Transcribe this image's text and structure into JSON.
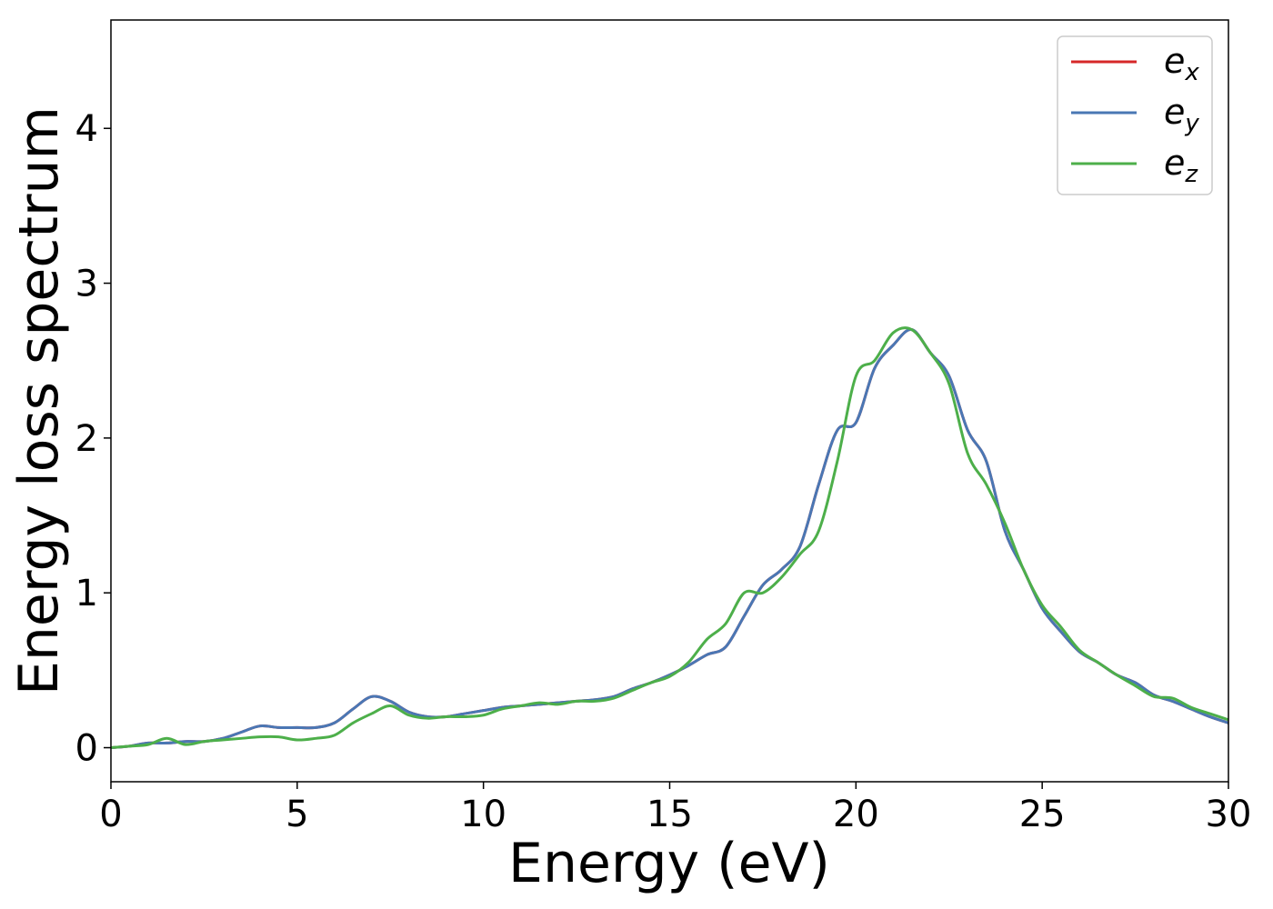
{
  "chart_data": {
    "type": "line",
    "title": "",
    "xlabel": "Energy (eV)",
    "ylabel": "Energy loss spectrum",
    "xlim": [
      0,
      30
    ],
    "ylim": [
      -0.22,
      4.7
    ],
    "xticks": [
      "0",
      "5",
      "10",
      "15",
      "20",
      "25",
      "30"
    ],
    "yticks": [
      "0",
      "1",
      "2",
      "3",
      "4"
    ],
    "grid": false,
    "legend_position": "top-right",
    "series": [
      {
        "name": "e_x",
        "label_main": "e",
        "label_sub": "x",
        "color": "#d62728",
        "x": [
          0,
          0.5,
          1,
          1.5,
          2,
          2.5,
          3,
          3.5,
          4,
          4.5,
          5,
          5.5,
          6,
          6.5,
          7,
          7.5,
          8,
          8.5,
          9,
          9.5,
          10,
          10.5,
          11,
          11.5,
          12,
          12.5,
          13,
          13.5,
          14,
          14.5,
          15,
          15.5,
          16,
          16.5,
          17,
          17.5,
          18,
          18.5,
          19,
          19.5,
          20,
          20.5,
          21,
          21.5,
          22,
          22.5,
          23,
          23.5,
          24,
          24.5,
          25,
          25.5,
          26,
          26.5,
          27,
          27.5,
          28,
          28.5,
          29,
          29.5,
          30
        ],
        "y": [
          0,
          0.01,
          0.03,
          0.03,
          0.04,
          0.04,
          0.06,
          0.1,
          0.14,
          0.13,
          0.13,
          0.13,
          0.16,
          0.25,
          0.33,
          0.3,
          0.23,
          0.2,
          0.2,
          0.22,
          0.24,
          0.26,
          0.27,
          0.28,
          0.29,
          0.3,
          0.31,
          0.33,
          0.38,
          0.42,
          0.47,
          0.53,
          0.6,
          0.65,
          0.85,
          1.05,
          1.15,
          1.3,
          1.7,
          2.05,
          2.1,
          2.45,
          2.6,
          2.7,
          2.55,
          2.4,
          2.05,
          1.85,
          1.4,
          1.15,
          0.9,
          0.75,
          0.62,
          0.55,
          0.47,
          0.42,
          0.34,
          0.3,
          0.25,
          0.2,
          0.16
        ]
      },
      {
        "name": "e_y",
        "label_main": "e",
        "label_sub": "y",
        "color": "#4a77b4",
        "x": [
          0,
          0.5,
          1,
          1.5,
          2,
          2.5,
          3,
          3.5,
          4,
          4.5,
          5,
          5.5,
          6,
          6.5,
          7,
          7.5,
          8,
          8.5,
          9,
          9.5,
          10,
          10.5,
          11,
          11.5,
          12,
          12.5,
          13,
          13.5,
          14,
          14.5,
          15,
          15.5,
          16,
          16.5,
          17,
          17.5,
          18,
          18.5,
          19,
          19.5,
          20,
          20.5,
          21,
          21.5,
          22,
          22.5,
          23,
          23.5,
          24,
          24.5,
          25,
          25.5,
          26,
          26.5,
          27,
          27.5,
          28,
          28.5,
          29,
          29.5,
          30
        ],
        "y": [
          0,
          0.01,
          0.03,
          0.03,
          0.04,
          0.04,
          0.06,
          0.1,
          0.14,
          0.13,
          0.13,
          0.13,
          0.16,
          0.25,
          0.33,
          0.3,
          0.23,
          0.2,
          0.2,
          0.22,
          0.24,
          0.26,
          0.27,
          0.28,
          0.29,
          0.3,
          0.31,
          0.33,
          0.38,
          0.42,
          0.47,
          0.53,
          0.6,
          0.65,
          0.85,
          1.05,
          1.15,
          1.3,
          1.7,
          2.05,
          2.1,
          2.45,
          2.6,
          2.7,
          2.55,
          2.4,
          2.05,
          1.85,
          1.4,
          1.15,
          0.9,
          0.75,
          0.62,
          0.55,
          0.47,
          0.42,
          0.34,
          0.3,
          0.25,
          0.2,
          0.16
        ]
      },
      {
        "name": "e_z",
        "label_main": "e",
        "label_sub": "z",
        "color": "#4daf4a",
        "x": [
          0,
          0.5,
          1,
          1.5,
          2,
          2.5,
          3,
          3.5,
          4,
          4.5,
          5,
          5.5,
          6,
          6.5,
          7,
          7.5,
          8,
          8.5,
          9,
          9.5,
          10,
          10.5,
          11,
          11.5,
          12,
          12.5,
          13,
          13.5,
          14,
          14.5,
          15,
          15.5,
          16,
          16.5,
          17,
          17.5,
          18,
          18.5,
          19,
          19.5,
          20,
          20.5,
          21,
          21.5,
          22,
          22.5,
          23,
          23.5,
          24,
          24.5,
          25,
          25.5,
          26,
          26.5,
          27,
          27.5,
          28,
          28.5,
          29,
          29.5,
          30
        ],
        "y": [
          0,
          0.01,
          0.02,
          0.06,
          0.02,
          0.04,
          0.05,
          0.06,
          0.07,
          0.07,
          0.05,
          0.06,
          0.08,
          0.16,
          0.22,
          0.27,
          0.21,
          0.19,
          0.2,
          0.2,
          0.21,
          0.25,
          0.27,
          0.29,
          0.28,
          0.3,
          0.3,
          0.32,
          0.37,
          0.42,
          0.46,
          0.55,
          0.7,
          0.8,
          1.0,
          1.0,
          1.1,
          1.25,
          1.4,
          1.85,
          2.4,
          2.5,
          2.68,
          2.7,
          2.55,
          2.35,
          1.9,
          1.7,
          1.45,
          1.15,
          0.92,
          0.78,
          0.63,
          0.55,
          0.47,
          0.4,
          0.33,
          0.32,
          0.26,
          0.22,
          0.18
        ]
      }
    ]
  }
}
